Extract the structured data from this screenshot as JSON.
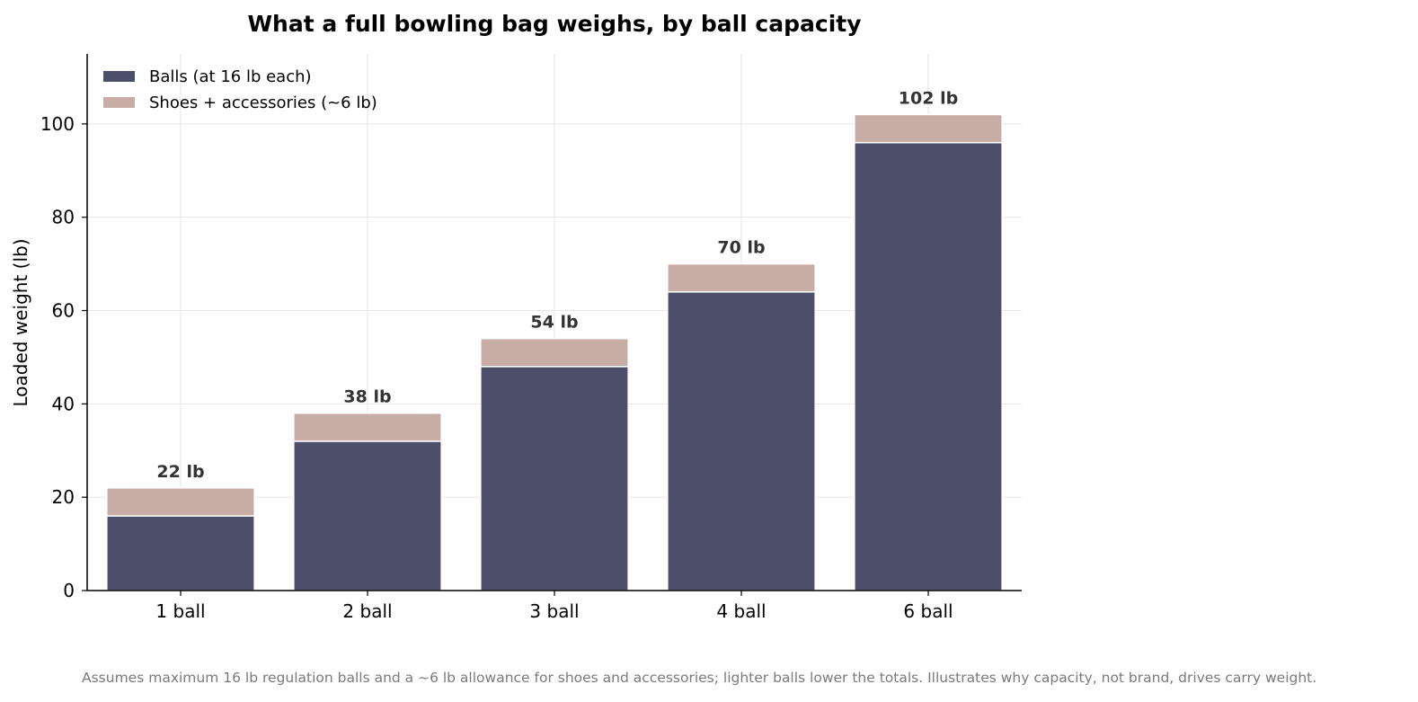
{
  "chart_data": {
    "type": "bar",
    "stacked": true,
    "title": "What a full bowling bag weighs, by ball capacity",
    "xlabel": "",
    "ylabel": "Loaded weight (lb)",
    "categories": [
      "1 ball",
      "2 ball",
      "3 ball",
      "4 ball",
      "6 ball"
    ],
    "series": [
      {
        "name": "Balls (at 16 lb each)",
        "values": [
          16,
          32,
          48,
          64,
          96
        ],
        "color": "#4b4f69"
      },
      {
        "name": "Shoes + accessories (~6 lb)",
        "values": [
          6,
          6,
          6,
          6,
          6
        ],
        "color": "#c8aca6"
      }
    ],
    "totals_labels": [
      "22 lb",
      "38 lb",
      "54 lb",
      "70 lb",
      "102 lb"
    ],
    "ylim": [
      0,
      115
    ],
    "yticks": [
      0,
      20,
      40,
      60,
      80,
      100
    ],
    "grid": true,
    "legend_position": "top-left"
  },
  "footnote": "Assumes maximum 16 lb regulation balls and a ~6 lb allowance for shoes and accessories; lighter balls lower the totals. Illustrates why capacity, not brand, drives carry weight."
}
